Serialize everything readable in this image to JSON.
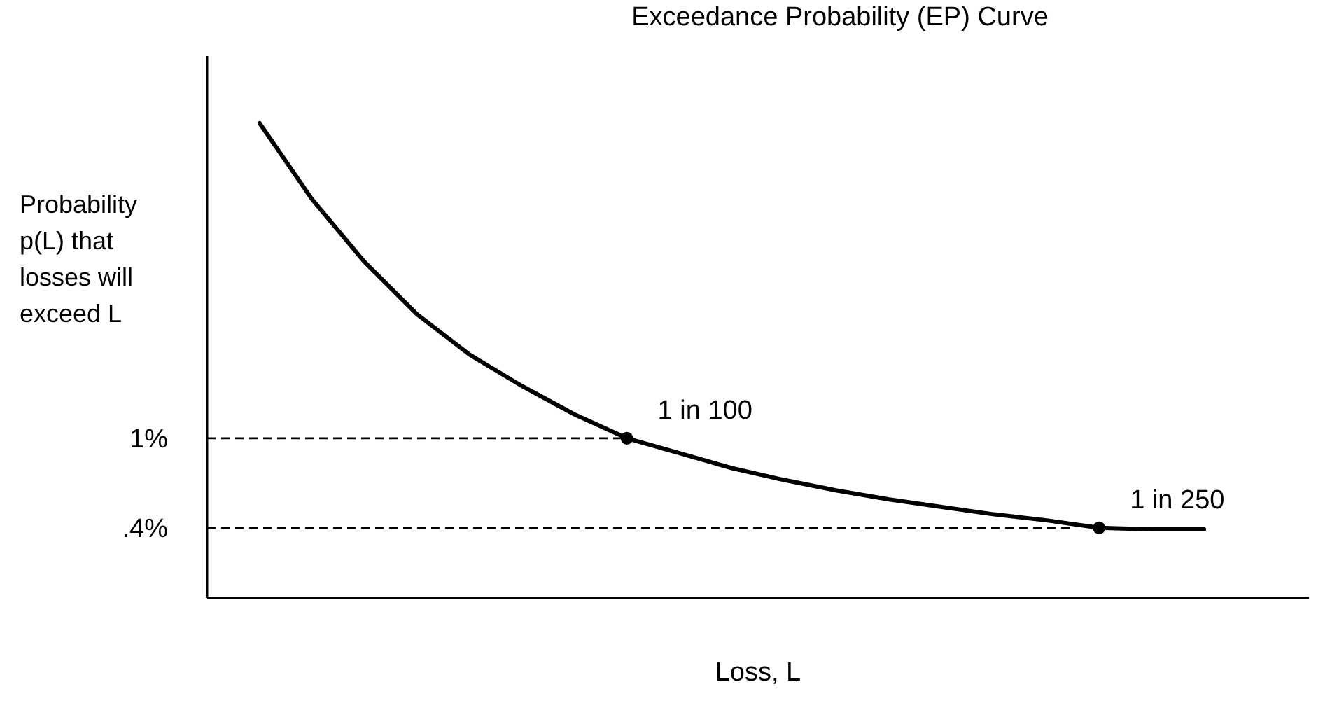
{
  "chart_data": {
    "type": "line",
    "title": "Exceedance Probability (EP) Curve",
    "xlabel": "Loss, L",
    "ylabel": "Probability p(L) that losses will exceed L",
    "categories": [
      null,
      null,
      null,
      null,
      null,
      null,
      null,
      null,
      null,
      null,
      null,
      null,
      null,
      null,
      null,
      null,
      null,
      null,
      null,
      null,
      null,
      null
    ],
    "series": [
      {
        "type": "line",
        "color": "#000000",
        "values": [
          null,
          3.11,
          2.6,
          2.18,
          1.83,
          1.56,
          1.35,
          1.16,
          1,
          0.9,
          0.8,
          0.72,
          0.65,
          0.59,
          0.54,
          0.49,
          0.45,
          0.4,
          0.39,
          0.39,
          null,
          null
        ]
      },
      {
        "type": "scatter",
        "color": "#000000",
        "marker": "circle",
        "values": [
          null,
          null,
          null,
          null,
          null,
          null,
          null,
          null,
          1,
          null,
          null,
          null,
          null,
          null,
          null,
          null,
          null,
          0.4,
          null,
          null,
          null,
          null
        ],
        "value_labels": [
          null,
          null,
          null,
          null,
          null,
          null,
          null,
          null,
          "1 in 100",
          null,
          null,
          null,
          null,
          null,
          null,
          null,
          null,
          "1 in 250",
          null,
          null,
          null,
          null
        ]
      }
    ],
    "ylim": [
      -0.07,
      3.56
    ],
    "yticks": [
      {
        "value": 1,
        "label": "1%"
      },
      {
        "value": 0.4,
        "label": ".4%"
      }
    ],
    "tick_labels": "y",
    "grid": false,
    "legend": false,
    "marker": "none",
    "ref_lines": [
      {
        "axis": "y",
        "value": 1,
        "color": "#000000",
        "line_style": "dashed"
      },
      {
        "axis": "y",
        "value": 0.4,
        "color": "#000000",
        "line_style": "dashed"
      }
    ]
  }
}
